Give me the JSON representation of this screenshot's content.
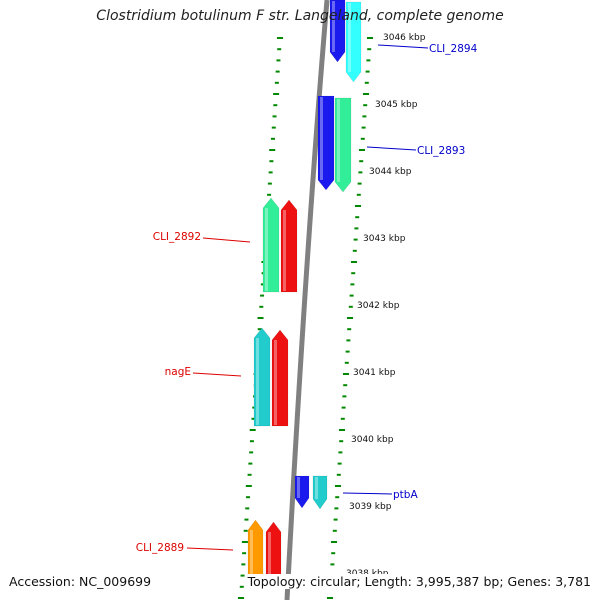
{
  "title": "Clostridium botulinum F str. Langeland, complete genome",
  "accession": "Accession: NC_009699",
  "summary": "Topology: circular; Length: 3,995,387 bp; Genes: 3,781",
  "scale_labels": [
    "3046 kbp",
    "3045 kbp",
    "3044 kbp",
    "3043 kbp",
    "3042 kbp",
    "3041 kbp",
    "3040 kbp",
    "3039 kbp",
    "3038 kbp"
  ],
  "gene_labels": [
    {
      "text": "CLI_2894",
      "strand": "forward"
    },
    {
      "text": "CLI_2893",
      "strand": "forward"
    },
    {
      "text": "CLI_2892",
      "strand": "reverse"
    },
    {
      "text": "nagE",
      "strand": "reverse"
    },
    {
      "text": "ptbA",
      "strand": "forward"
    },
    {
      "text": "CLI_2889",
      "strand": "reverse"
    }
  ],
  "colors": {
    "forward_label": "#0000cc",
    "reverse_label": "#dd0000",
    "tick": "#008800",
    "backbone": "#808080",
    "blue": "#1a1aee",
    "cyan": "#22cccc",
    "mint": "#33ee99",
    "red": "#ee1111",
    "orange": "#ff9900",
    "sky": "#33ffff"
  }
}
